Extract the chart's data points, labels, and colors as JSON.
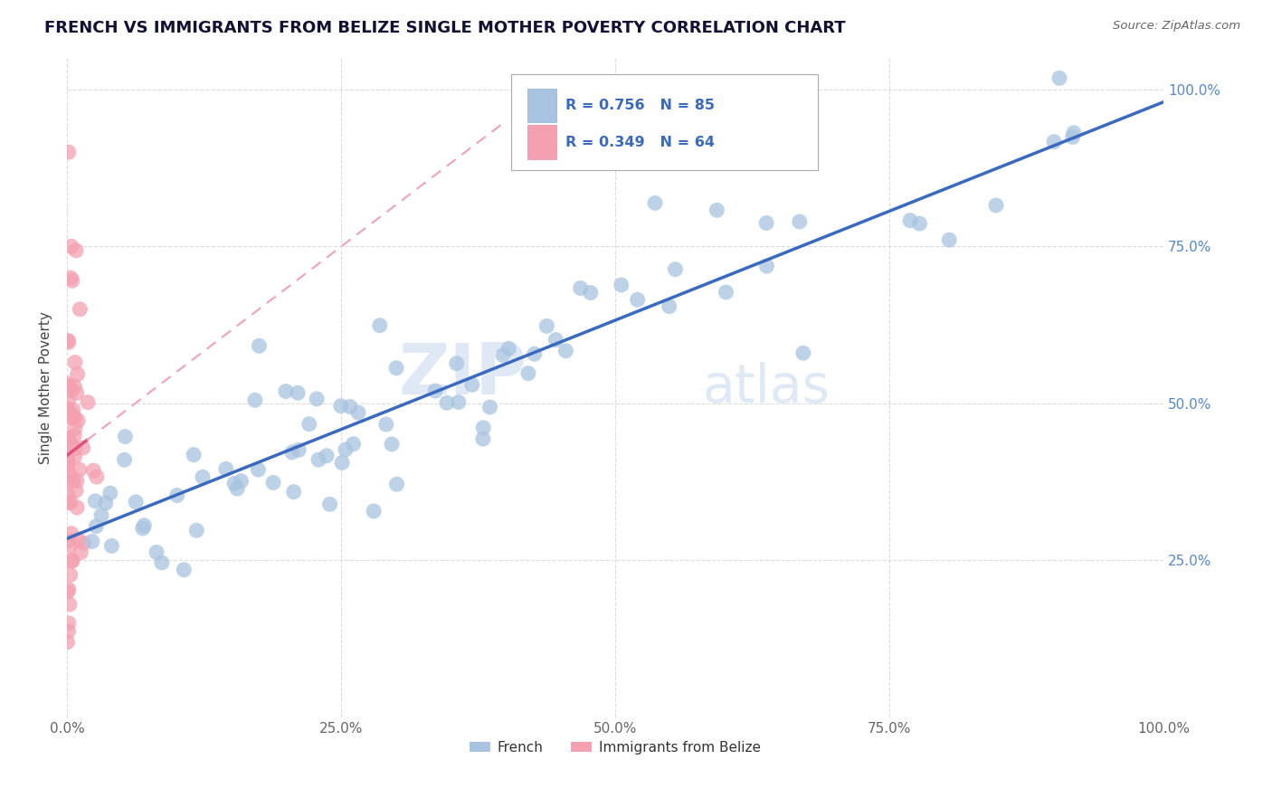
{
  "title": "FRENCH VS IMMIGRANTS FROM BELIZE SINGLE MOTHER POVERTY CORRELATION CHART",
  "source": "Source: ZipAtlas.com",
  "ylabel": "Single Mother Poverty",
  "xlim": [
    0,
    1
  ],
  "ylim": [
    0,
    1.05
  ],
  "xtick_labels": [
    "0.0%",
    "25.0%",
    "50.0%",
    "75.0%",
    "100.0%"
  ],
  "xtick_vals": [
    0,
    0.25,
    0.5,
    0.75,
    1.0
  ],
  "ytick_labels": [
    "25.0%",
    "50.0%",
    "75.0%",
    "100.0%"
  ],
  "ytick_vals": [
    0.25,
    0.5,
    0.75,
    1.0
  ],
  "ytick_right_labels": [
    "100.0%",
    "75.0%",
    "50.0%",
    "25.0%"
  ],
  "legend_r1": "R = 0.756",
  "legend_n1": "N = 85",
  "legend_r2": "R = 0.349",
  "legend_n2": "N = 64",
  "french_color": "#a8c4e0",
  "belize_color": "#f4a0b0",
  "french_line_color": "#3a6abf",
  "belize_line_color": "#e05080",
  "belize_dash_color": "#f0a0b8",
  "tick_color": "#5588cc",
  "watermark_zip": "ZIP",
  "watermark_atlas": "atlas",
  "background_color": "#ffffff",
  "grid_color": "#cccccc"
}
